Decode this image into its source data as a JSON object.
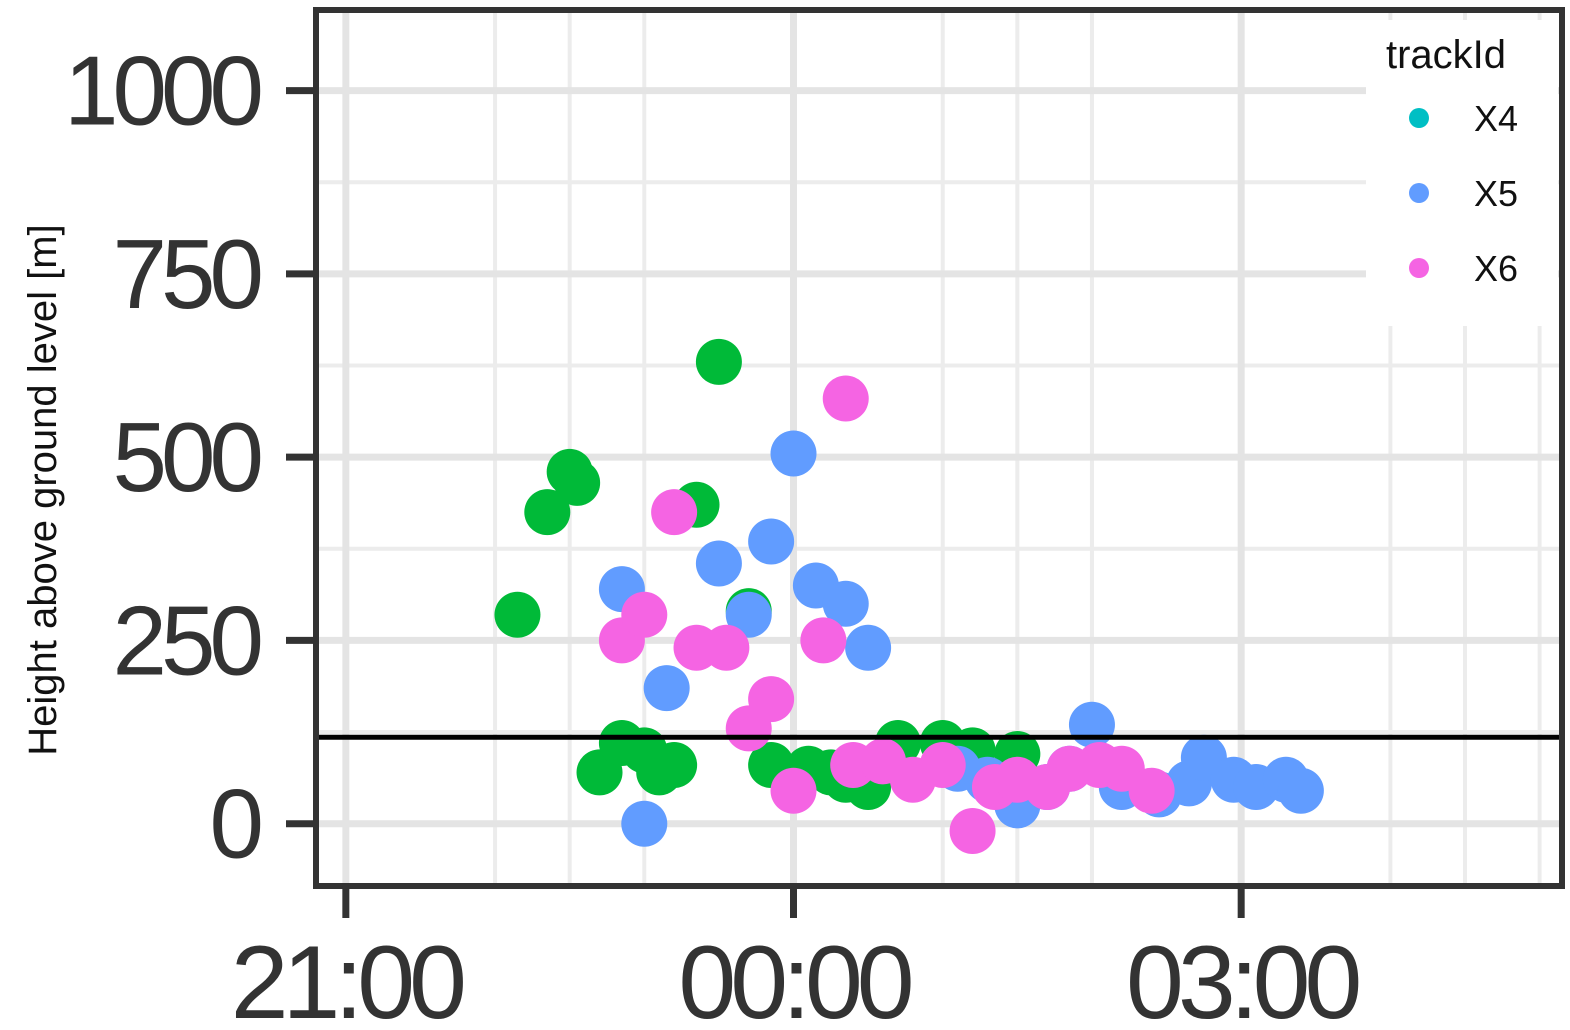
{
  "chart_data": {
    "type": "scatter",
    "x_unit": "hours",
    "x_ticks": [
      {
        "value": -3,
        "label": "21:00"
      },
      {
        "value": 0,
        "label": "00:00"
      },
      {
        "value": 3,
        "label": "03:00"
      }
    ],
    "y_ticks": [
      {
        "value": 0,
        "label": "0"
      },
      {
        "value": 250,
        "label": "250"
      },
      {
        "value": 500,
        "label": "500"
      },
      {
        "value": 750,
        "label": "750"
      },
      {
        "value": 1000,
        "label": "1000"
      }
    ],
    "xlim": [
      -3.2,
      5.15
    ],
    "ylim": [
      -85,
      1110
    ],
    "ylabel": "Height above ground level [m]",
    "xlabel": "",
    "grid": true,
    "reference_line": {
      "y": 118,
      "color": "#000000"
    },
    "legend": {
      "title": "trackId",
      "position": "top-right",
      "entries": [
        {
          "name": "X4",
          "color": "#00BFC4"
        },
        {
          "name": "X5",
          "color": "#619CFF"
        },
        {
          "name": "X6",
          "color": "#F564E3"
        }
      ]
    },
    "series": [
      {
        "name": "green track",
        "color": "#00BA38",
        "points": [
          [
            -1.85,
            285
          ],
          [
            -1.65,
            425
          ],
          [
            -1.5,
            480
          ],
          [
            -1.45,
            465
          ],
          [
            -0.5,
            630
          ],
          [
            -0.65,
            435
          ],
          [
            -1.3,
            70
          ],
          [
            -1.15,
            110
          ],
          [
            -1.0,
            100
          ],
          [
            -0.9,
            70
          ],
          [
            -0.8,
            80
          ],
          [
            -0.3,
            290
          ],
          [
            -0.15,
            80
          ],
          [
            0.1,
            75
          ],
          [
            0.25,
            70
          ],
          [
            0.35,
            60
          ],
          [
            0.5,
            50
          ],
          [
            0.7,
            110
          ],
          [
            1.0,
            110
          ],
          [
            1.2,
            100
          ],
          [
            1.5,
            95
          ]
        ]
      },
      {
        "name": "X5",
        "color": "#619CFF",
        "points": [
          [
            -1.15,
            320
          ],
          [
            -1.0,
            0
          ],
          [
            -0.85,
            185
          ],
          [
            -0.5,
            355
          ],
          [
            -0.3,
            285
          ],
          [
            -0.15,
            385
          ],
          [
            0.0,
            505
          ],
          [
            0.15,
            325
          ],
          [
            0.35,
            300
          ],
          [
            0.5,
            240
          ],
          [
            1.1,
            75
          ],
          [
            1.3,
            60
          ],
          [
            1.5,
            25
          ],
          [
            1.7,
            50
          ],
          [
            1.85,
            75
          ],
          [
            2.0,
            135
          ],
          [
            2.2,
            50
          ],
          [
            2.45,
            40
          ],
          [
            2.65,
            55
          ],
          [
            2.75,
            90
          ],
          [
            2.95,
            60
          ],
          [
            3.1,
            50
          ],
          [
            3.3,
            60
          ],
          [
            3.4,
            45
          ]
        ]
      },
      {
        "name": "X6",
        "color": "#F564E3",
        "points": [
          [
            -0.8,
            425
          ],
          [
            -1.15,
            250
          ],
          [
            -1.0,
            285
          ],
          [
            -0.65,
            240
          ],
          [
            -0.45,
            240
          ],
          [
            -0.3,
            130
          ],
          [
            -0.15,
            170
          ],
          [
            0.0,
            45
          ],
          [
            0.2,
            250
          ],
          [
            0.35,
            580
          ],
          [
            0.4,
            80
          ],
          [
            0.6,
            85
          ],
          [
            0.8,
            60
          ],
          [
            1.0,
            80
          ],
          [
            1.2,
            -10
          ],
          [
            1.35,
            50
          ],
          [
            1.5,
            60
          ],
          [
            1.7,
            50
          ],
          [
            1.85,
            75
          ],
          [
            2.05,
            80
          ],
          [
            2.2,
            75
          ],
          [
            2.4,
            45
          ]
        ]
      }
    ]
  }
}
